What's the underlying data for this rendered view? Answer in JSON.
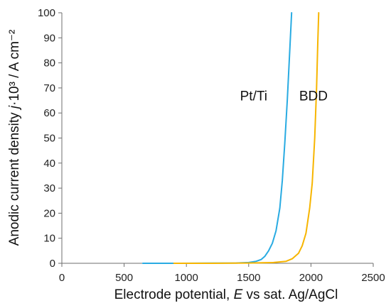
{
  "chart_data": {
    "type": "line",
    "xlabel": {
      "main": "Electrode potential, ",
      "var": "E",
      "rest": " vs sat. Ag/AgCl"
    },
    "ylabel": {
      "main": "Anodic current density ",
      "var": "j",
      "rest": "·10³ / A cm⁻²"
    },
    "xlim": [
      0,
      2500
    ],
    "ylim": [
      0,
      100
    ],
    "xticks": [
      0,
      500,
      1000,
      1500,
      2000,
      2500
    ],
    "yticks": [
      0,
      10,
      20,
      30,
      40,
      50,
      60,
      70,
      80,
      90,
      100
    ],
    "grid": false,
    "legend": "none",
    "series": [
      {
        "name": "Pt/Ti",
        "color": "#29abe2",
        "label_at": [
          1540,
          67
        ],
        "x": [
          650,
          900,
          1200,
          1400,
          1500,
          1560,
          1600,
          1630,
          1660,
          1690,
          1720,
          1750,
          1770,
          1790,
          1810,
          1830,
          1845
        ],
        "y": [
          0,
          0,
          0.05,
          0.1,
          0.3,
          0.8,
          1.5,
          2.8,
          5,
          8,
          13,
          22,
          33,
          48,
          65,
          85,
          100
        ]
      },
      {
        "name": "BDD",
        "color": "#f7b500",
        "label_at": [
          2020,
          67
        ],
        "x": [
          900,
          1200,
          1500,
          1700,
          1800,
          1850,
          1900,
          1930,
          1960,
          1990,
          2010,
          2030,
          2045,
          2055,
          2062
        ],
        "y": [
          0,
          0,
          0.1,
          0.3,
          0.8,
          1.8,
          4,
          7,
          12,
          22,
          32,
          50,
          70,
          88,
          100
        ]
      }
    ]
  }
}
